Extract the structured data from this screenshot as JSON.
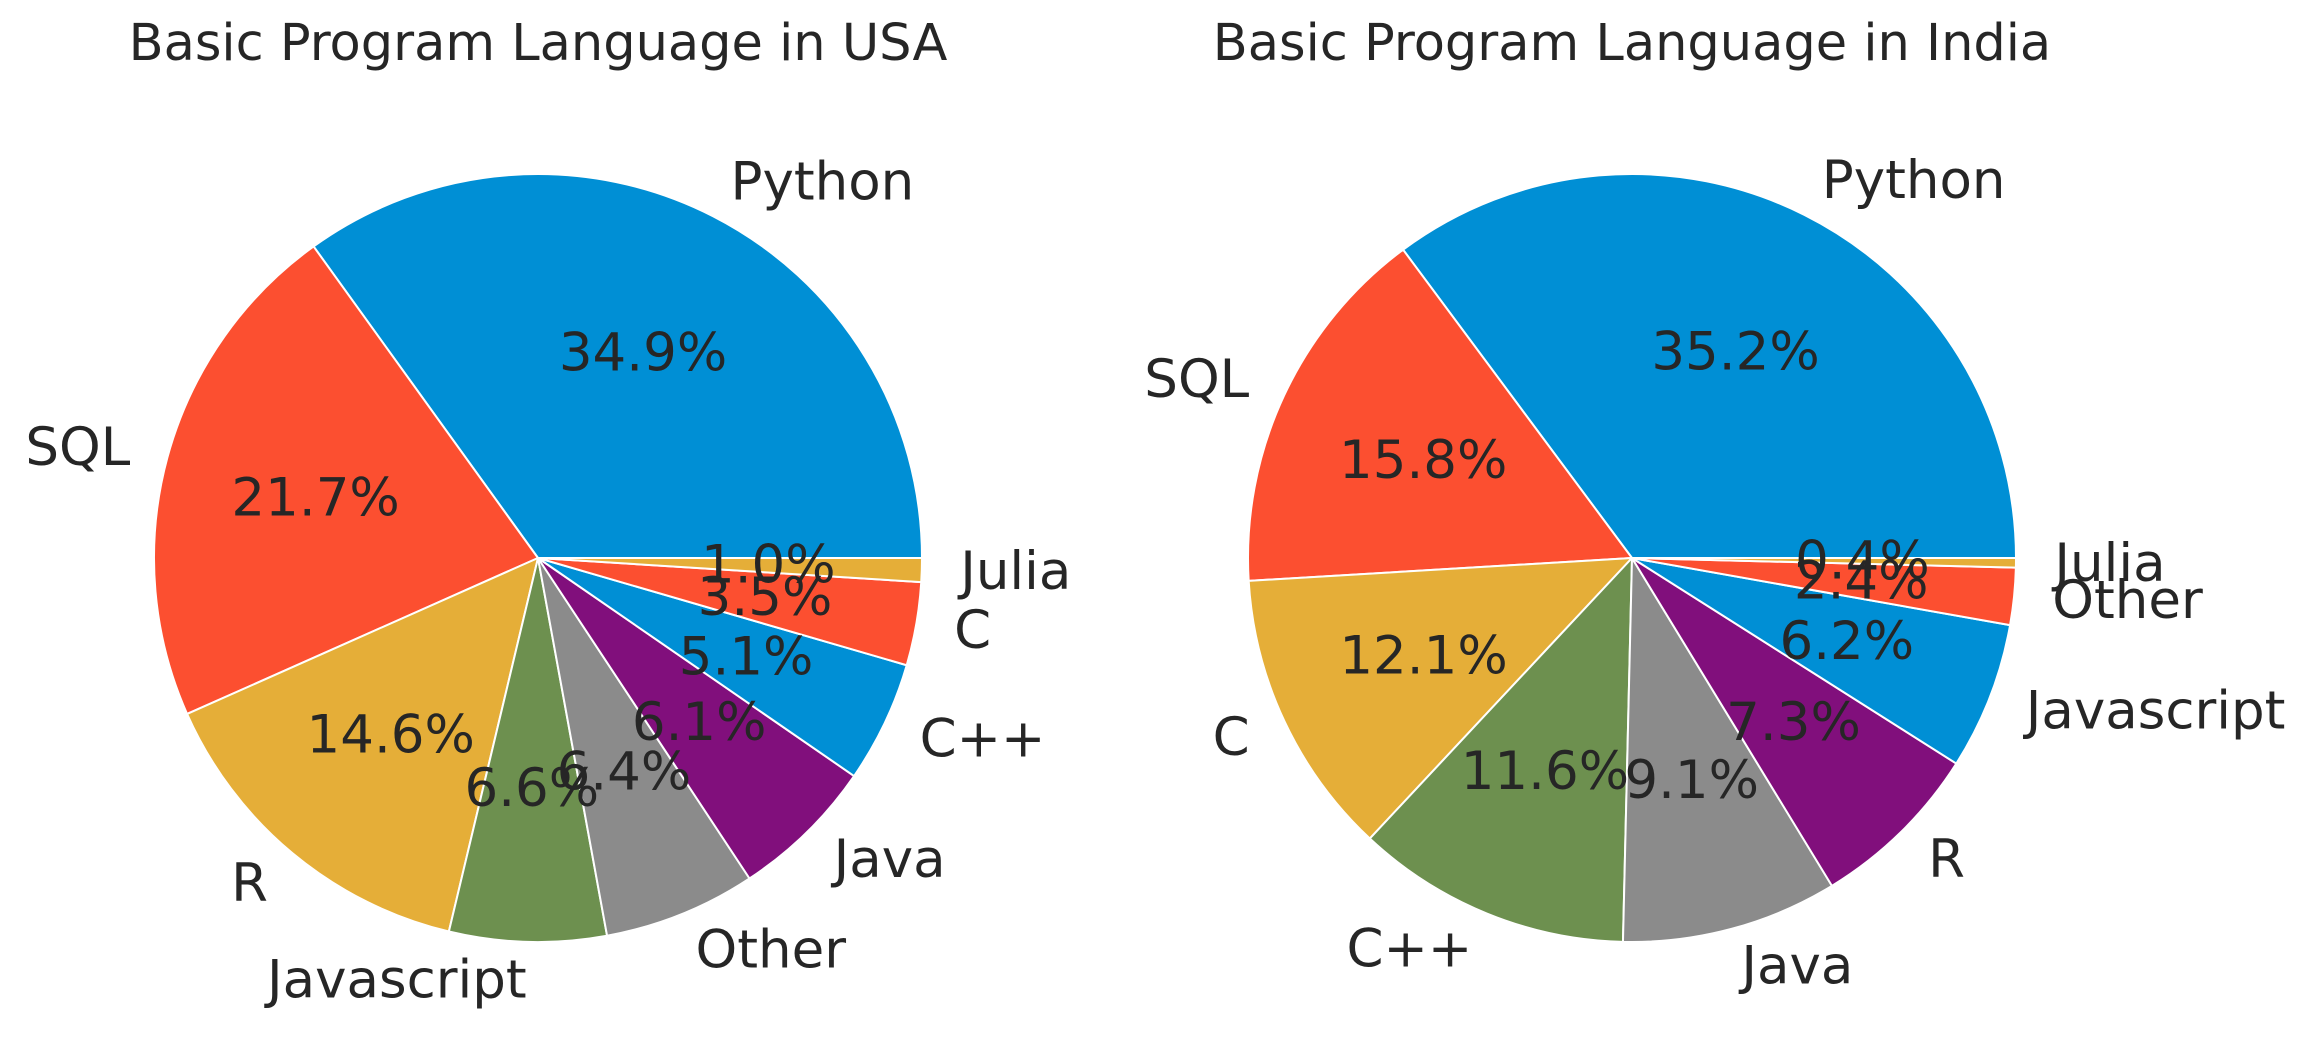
{
  "chart_data": [
    {
      "type": "pie",
      "title": "Basic Program Language in USA",
      "labels": [
        "Python",
        "SQL",
        "R",
        "Javascript",
        "Other",
        "Java",
        "C++",
        "C",
        "Julia"
      ],
      "values": [
        34.9,
        21.7,
        14.6,
        6.6,
        6.4,
        6.1,
        5.1,
        3.5,
        1.0
      ],
      "percent_labels": [
        "34.9%",
        "21.7%",
        "14.6%",
        "6.6%",
        "6.4%",
        "6.1%",
        "5.1%",
        "3.5%",
        "1.0%"
      ],
      "colors": [
        "#008fd5",
        "#fc4f30",
        "#e5ae38",
        "#6d904f",
        "#8b8b8b",
        "#810f7c",
        "#008fd5",
        "#fc4f30",
        "#e5ae38"
      ],
      "start_angle": 0,
      "direction": "counterclockwise"
    },
    {
      "type": "pie",
      "title": "Basic Program Language in India",
      "labels": [
        "Python",
        "SQL",
        "C",
        "C++",
        "Java",
        "R",
        "Javascript",
        "Other",
        "Julia"
      ],
      "values": [
        35.2,
        15.8,
        12.1,
        11.6,
        9.1,
        7.3,
        6.2,
        2.4,
        0.4
      ],
      "percent_labels": [
        "35.2%",
        "15.8%",
        "12.1%",
        "11.6%",
        "9.1%",
        "7.3%",
        "6.2%",
        "2.4%",
        "0.4%"
      ],
      "colors": [
        "#008fd5",
        "#fc4f30",
        "#e5ae38",
        "#6d904f",
        "#8b8b8b",
        "#810f7c",
        "#008fd5",
        "#fc4f30",
        "#e5ae38"
      ],
      "start_angle": 0,
      "direction": "counterclockwise"
    }
  ]
}
